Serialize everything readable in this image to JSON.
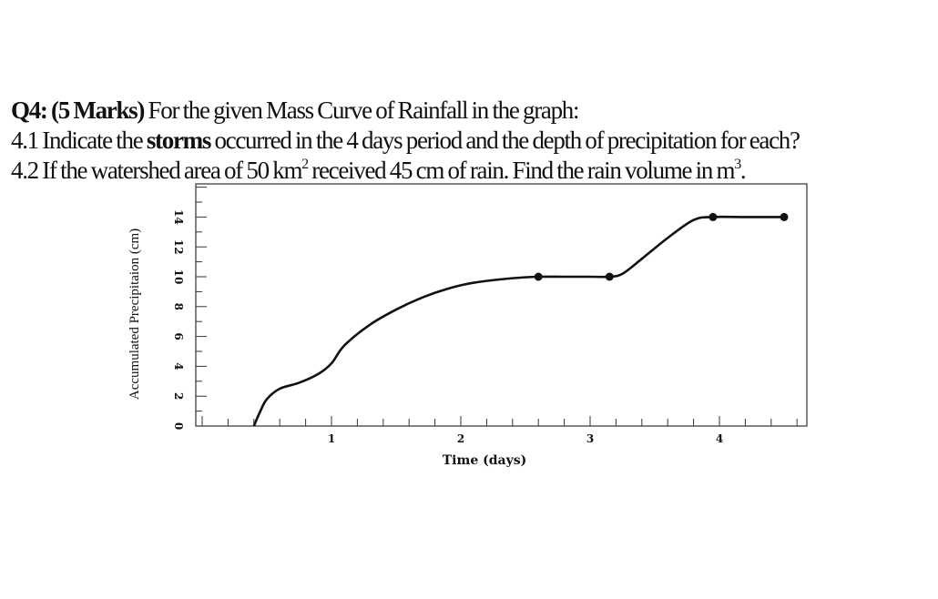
{
  "question": {
    "line1": {
      "prefix": "Q4: (5 Marks)",
      "text": " For the given Mass Curve of Rainfall in the graph:"
    },
    "line2": {
      "pre": "4.1 Indicate the ",
      "bold": "storms",
      "post": " occurred in the 4 days period and the depth of precipitation for each?"
    },
    "line3": {
      "pre": "4.2 If the watershed area of 50 km",
      "sup1": "2",
      "mid": " received 45 cm of rain. Find the rain volume in m",
      "sup2": "3",
      "post": "."
    }
  },
  "chart_data": {
    "type": "line",
    "title": "",
    "xlabel": "Time (days)",
    "ylabel": "Accumulated Precipitaion (cm)",
    "x_ticks": [
      1,
      2,
      3,
      4
    ],
    "y_ticks": [
      0,
      2,
      4,
      6,
      8,
      10,
      12,
      14
    ],
    "xlim": [
      0,
      4.6
    ],
    "ylim": [
      0,
      16
    ],
    "grid": false,
    "legend": "none",
    "series": [
      {
        "color": "#111111",
        "x": [
          0.4,
          0.45,
          0.5,
          0.6,
          0.75,
          0.9,
          1.0,
          1.1,
          1.3,
          1.5,
          1.7,
          1.9,
          2.1,
          2.4,
          2.6,
          2.8,
          3.0,
          3.15,
          3.25,
          3.4,
          3.6,
          3.8,
          3.95,
          4.2,
          4.5
        ],
        "y": [
          0,
          1.0,
          1.8,
          2.5,
          2.9,
          3.5,
          4.2,
          5.4,
          6.8,
          7.8,
          8.6,
          9.2,
          9.6,
          9.9,
          10.0,
          10.0,
          10.0,
          10.0,
          10.2,
          11.2,
          12.6,
          13.8,
          14.0,
          14.0,
          14.0
        ]
      }
    ],
    "markers": [
      {
        "x": 2.6,
        "y": 10.0
      },
      {
        "x": 3.15,
        "y": 10.0
      },
      {
        "x": 3.95,
        "y": 14.0
      },
      {
        "x": 4.5,
        "y": 14.0
      }
    ]
  }
}
